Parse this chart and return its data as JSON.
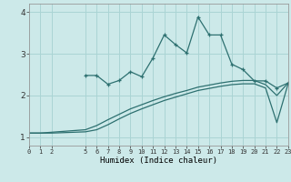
{
  "bg_color": "#cce9e9",
  "grid_color": "#aad4d4",
  "line_color": "#2d7070",
  "xlabel": "Humidex (Indice chaleur)",
  "x_ticks": [
    0,
    1,
    2,
    5,
    6,
    7,
    8,
    9,
    10,
    11,
    12,
    13,
    14,
    15,
    16,
    17,
    18,
    19,
    20,
    21,
    22,
    23
  ],
  "xlim": [
    0,
    23
  ],
  "ylim": [
    0.8,
    4.2
  ],
  "yticks": [
    1,
    2,
    3,
    4
  ],
  "series1_x": [
    5,
    6,
    7,
    8,
    9,
    10,
    11,
    12,
    13,
    14,
    15,
    16,
    17,
    18,
    19,
    20,
    21,
    22,
    23
  ],
  "series1_y": [
    2.48,
    2.48,
    2.27,
    2.36,
    2.57,
    2.45,
    2.9,
    3.45,
    3.22,
    3.02,
    3.88,
    3.45,
    3.45,
    2.75,
    2.62,
    2.35,
    2.35,
    2.18,
    2.3
  ],
  "series2_x": [
    0,
    1,
    2,
    5,
    6,
    7,
    8,
    9,
    10,
    11,
    12,
    13,
    14,
    15,
    16,
    17,
    18,
    19,
    20,
    21,
    22,
    23
  ],
  "series2_y": [
    1.1,
    1.1,
    1.12,
    1.18,
    1.28,
    1.42,
    1.55,
    1.68,
    1.78,
    1.88,
    1.97,
    2.05,
    2.12,
    2.2,
    2.25,
    2.3,
    2.34,
    2.36,
    2.36,
    2.26,
    2.0,
    2.3
  ],
  "series3_x": [
    0,
    1,
    2,
    5,
    6,
    7,
    8,
    9,
    10,
    11,
    12,
    13,
    14,
    15,
    16,
    17,
    18,
    19,
    20,
    21,
    22,
    23
  ],
  "series3_y": [
    1.1,
    1.1,
    1.1,
    1.13,
    1.18,
    1.3,
    1.44,
    1.57,
    1.68,
    1.78,
    1.88,
    1.96,
    2.04,
    2.12,
    2.17,
    2.22,
    2.26,
    2.28,
    2.28,
    2.18,
    1.35,
    2.28
  ]
}
